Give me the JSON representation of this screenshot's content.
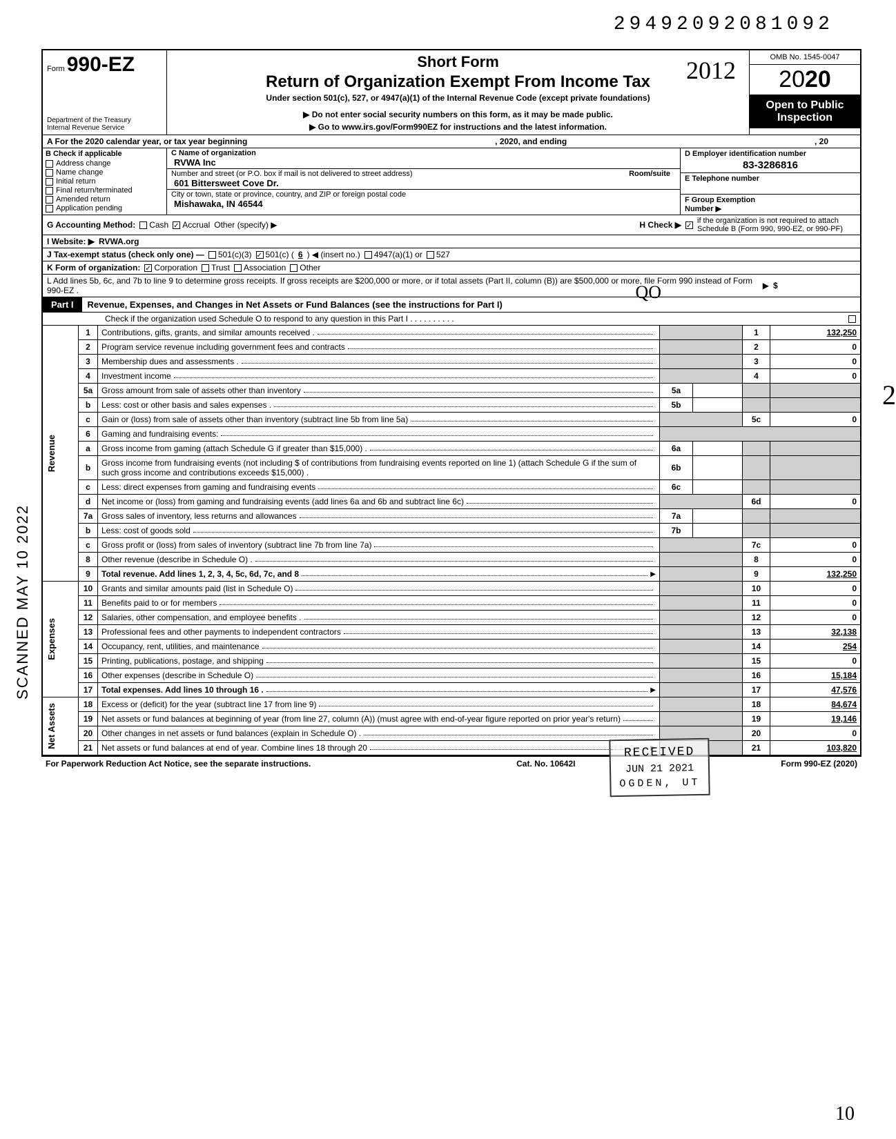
{
  "dln": "29492092081092",
  "form": {
    "form_prefix": "Form",
    "form_number": "990-EZ",
    "short_form": "Short Form",
    "title": "Return of Organization Exempt From Income Tax",
    "under_section": "Under section 501(c), 527, or 4947(a)(1) of the Internal Revenue Code (except private foundations)",
    "warn1": "▶ Do not enter social security numbers on this form, as it may be made public.",
    "warn2": "▶ Go to www.irs.gov/Form990EZ for instructions and the latest information.",
    "dept1": "Department of the Treasury",
    "dept2": "Internal Revenue Service",
    "omb": "OMB No. 1545-0047",
    "year_prefix": "20",
    "year_bold": "20",
    "open_public1": "Open to Public",
    "open_public2": "Inspection",
    "hand_year": "2012"
  },
  "lineA": {
    "label": "A  For the 2020 calendar year, or tax year beginning",
    "mid": ", 2020, and ending",
    "end": ", 20"
  },
  "blockB": {
    "header": "B  Check if applicable",
    "items": [
      "Address change",
      "Name change",
      "Initial return",
      "Final return/terminated",
      "Amended return",
      "Application pending"
    ]
  },
  "blockC": {
    "c_label": "C  Name of organization",
    "name": "RVWA Inc",
    "street_label": "Number and street (or P.O. box if mail is not delivered to street address)",
    "room_suite": "Room/suite",
    "street": "601 Bittersweet Cove Dr.",
    "city_label": "City or town, state or province, country, and ZIP or foreign postal code",
    "city": "Mishawaka, IN 46544"
  },
  "blockD": {
    "d_label": "D Employer identification number",
    "ein": "83-3286816",
    "e_label": "E Telephone number",
    "f_label": "F  Group Exemption",
    "f_label2": "Number ▶"
  },
  "rowG": {
    "label": "G  Accounting Method:",
    "cash": "Cash",
    "accrual": "Accrual",
    "other": "Other (specify) ▶"
  },
  "rowH": {
    "text1": "H  Check ▶",
    "text2": "if the organization is not required to attach Schedule B (Form 990, 990-EZ, or 990-PF)"
  },
  "rowI": {
    "label": "I   Website: ▶",
    "value": "RVWA.org"
  },
  "rowJ": {
    "label": "J  Tax-exempt status (check only one) —",
    "a": "501(c)(3)",
    "b": "501(c) (",
    "bnum": "6",
    "b2": ") ◀ (insert no.)",
    "c": "4947(a)(1) or",
    "d": "527"
  },
  "rowK": {
    "label": "K  Form of organization:",
    "corp": "Corporation",
    "trust": "Trust",
    "assoc": "Association",
    "other": "Other"
  },
  "rowL": {
    "text": "L  Add lines 5b, 6c, and 7b to line 9 to determine gross receipts. If gross receipts are $200,000 or more, or if total assets (Part II, column (B)) are $500,000 or more, file Form 990 instead of Form 990-EZ .",
    "arrow": "▶",
    "dollar": "$"
  },
  "part1": {
    "tag": "Part I",
    "title": "Revenue, Expenses, and Changes in Net Assets or Fund Balances (see the instructions for Part I)",
    "sub": "Check if the organization used Schedule O to respond to any question in this Part I  .   .   .   .   .   .   .   .   .   ."
  },
  "sections": {
    "revenue": "Revenue",
    "expenses": "Expenses",
    "netassets": "Net Assets"
  },
  "lines": [
    {
      "n": "1",
      "d": "Contributions, gifts, grants, and similar amounts received .",
      "r": "1",
      "v": "132,250"
    },
    {
      "n": "2",
      "d": "Program service revenue including government fees and contracts",
      "r": "2",
      "v": "0"
    },
    {
      "n": "3",
      "d": "Membership dues and assessments .",
      "r": "3",
      "v": "0"
    },
    {
      "n": "4",
      "d": "Investment income",
      "r": "4",
      "v": "0"
    },
    {
      "n": "5a",
      "d": "Gross amount from sale of assets other than inventory",
      "ib": "5a"
    },
    {
      "n": "b",
      "d": "Less: cost or other basis and sales expenses .",
      "ib": "5b"
    },
    {
      "n": "c",
      "d": "Gain or (loss) from sale of assets other than inventory (subtract line 5b from line 5a)",
      "r": "5c",
      "v": "0"
    },
    {
      "n": "6",
      "d": "Gaming and fundraising events:"
    },
    {
      "n": "a",
      "d": "Gross income from gaming (attach Schedule G if greater than $15,000) .",
      "ib": "6a"
    },
    {
      "n": "b",
      "d": "Gross income from fundraising events (not including  $                         of contributions from fundraising events reported on line 1) (attach Schedule G if the sum of such gross income and contributions exceeds $15,000) .",
      "ib": "6b"
    },
    {
      "n": "c",
      "d": "Less: direct expenses from gaming and fundraising events",
      "ib": "6c"
    },
    {
      "n": "d",
      "d": "Net income or (loss) from gaming and fundraising events (add lines 6a and 6b and subtract line 6c)",
      "r": "6d",
      "v": "0"
    },
    {
      "n": "7a",
      "d": "Gross sales of inventory, less returns and allowances",
      "ib": "7a"
    },
    {
      "n": "b",
      "d": "Less: cost of goods sold",
      "ib": "7b"
    },
    {
      "n": "c",
      "d": "Gross profit or (loss) from sales of inventory (subtract line 7b from line 7a)",
      "r": "7c",
      "v": "0"
    },
    {
      "n": "8",
      "d": "Other revenue (describe in Schedule O) .",
      "r": "8",
      "v": "0"
    },
    {
      "n": "9",
      "d": "Total revenue. Add lines 1, 2, 3, 4, 5c, 6d, 7c, and 8",
      "r": "9",
      "v": "132,250",
      "bold": true,
      "arrow": true
    },
    {
      "n": "10",
      "d": "Grants and similar amounts paid (list in Schedule O)",
      "r": "10",
      "v": "0"
    },
    {
      "n": "11",
      "d": "Benefits paid to or for members",
      "r": "11",
      "v": "0"
    },
    {
      "n": "12",
      "d": "Salaries, other compensation, and employee benefits .",
      "r": "12",
      "v": "0"
    },
    {
      "n": "13",
      "d": "Professional fees and other payments to independent contractors",
      "r": "13",
      "v": "32,138"
    },
    {
      "n": "14",
      "d": "Occupancy, rent, utilities, and maintenance",
      "r": "14",
      "v": "254"
    },
    {
      "n": "15",
      "d": "Printing, publications, postage, and shipping",
      "r": "15",
      "v": "0"
    },
    {
      "n": "16",
      "d": "Other expenses (describe in Schedule O)",
      "r": "16",
      "v": "15,184"
    },
    {
      "n": "17",
      "d": "Total expenses. Add lines 10 through 16 .",
      "r": "17",
      "v": "47,576",
      "bold": true,
      "arrow": true
    },
    {
      "n": "18",
      "d": "Excess or (deficit) for the year (subtract line 17 from line 9)",
      "r": "18",
      "v": "84,674"
    },
    {
      "n": "19",
      "d": "Net assets or fund balances at beginning of year (from line 27, column (A)) (must agree with end-of-year figure reported on prior year's return)",
      "r": "19",
      "v": "19,146"
    },
    {
      "n": "20",
      "d": "Other changes in net assets or fund balances (explain in Schedule O) .",
      "r": "20",
      "v": "0"
    },
    {
      "n": "21",
      "d": "Net assets or fund balances at end of year. Combine lines 18 through 20",
      "r": "21",
      "v": "103,820",
      "arrow": true
    }
  ],
  "footer": {
    "left": "For Paperwork Reduction Act Notice, see the separate instructions.",
    "mid": "Cat. No. 10642I",
    "right": "Form 990-EZ (2020)"
  },
  "stamps": {
    "scanned": "SCANNED  MAY 10 2022",
    "received_top": "RECEIVED",
    "received_date": "JUN 21 2021",
    "received_loc": "OGDEN, UT",
    "hand_qo": "QO",
    "hand_init": "2",
    "page_num": "10"
  }
}
